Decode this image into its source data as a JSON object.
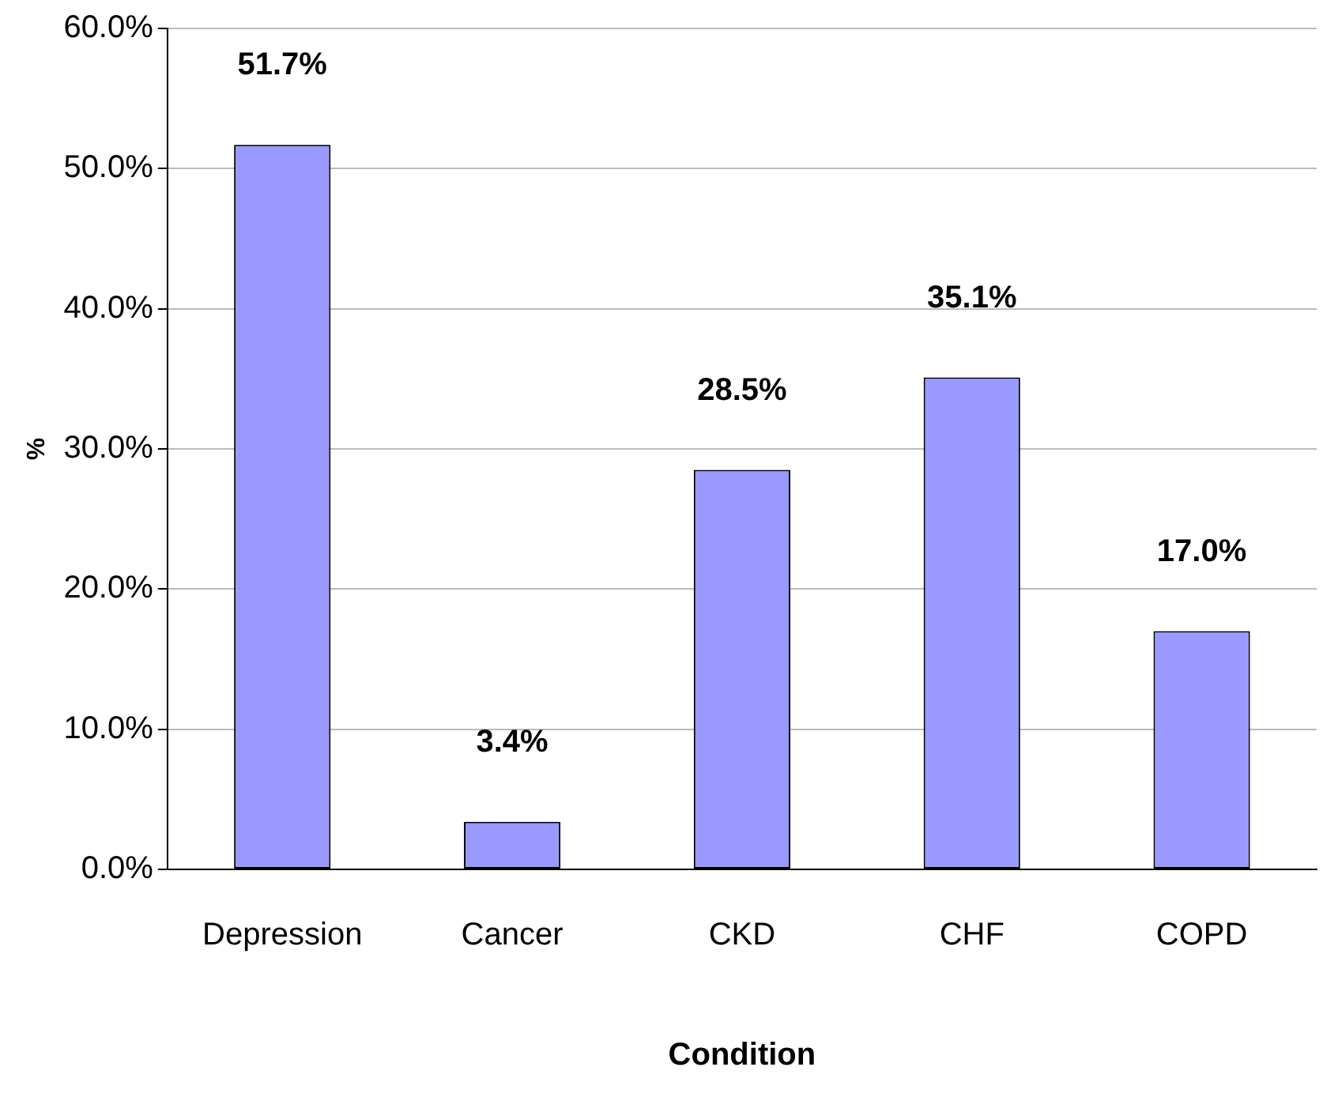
{
  "chart_data": {
    "type": "bar",
    "xlabel": "Condition",
    "ylabel": "%",
    "categories": [
      "Depression",
      "Cancer",
      "CKD",
      "CHF",
      "COPD"
    ],
    "values": [
      51.7,
      3.4,
      28.5,
      35.1,
      17.0
    ],
    "value_labels": [
      "51.7%",
      "3.4%",
      "28.5%",
      "35.1%",
      "17.0%"
    ],
    "color": "#9999ff",
    "ylim": [
      0,
      60
    ],
    "yticks": [
      {
        "value": 0,
        "label": "0.0%"
      },
      {
        "value": 10,
        "label": "10.0%"
      },
      {
        "value": 20,
        "label": "20.0%"
      },
      {
        "value": 30,
        "label": "30.0%"
      },
      {
        "value": 40,
        "label": "40.0%"
      },
      {
        "value": 50,
        "label": "50.0%"
      },
      {
        "value": 60,
        "label": "60.0%"
      }
    ],
    "grid": "y",
    "legend": false
  }
}
